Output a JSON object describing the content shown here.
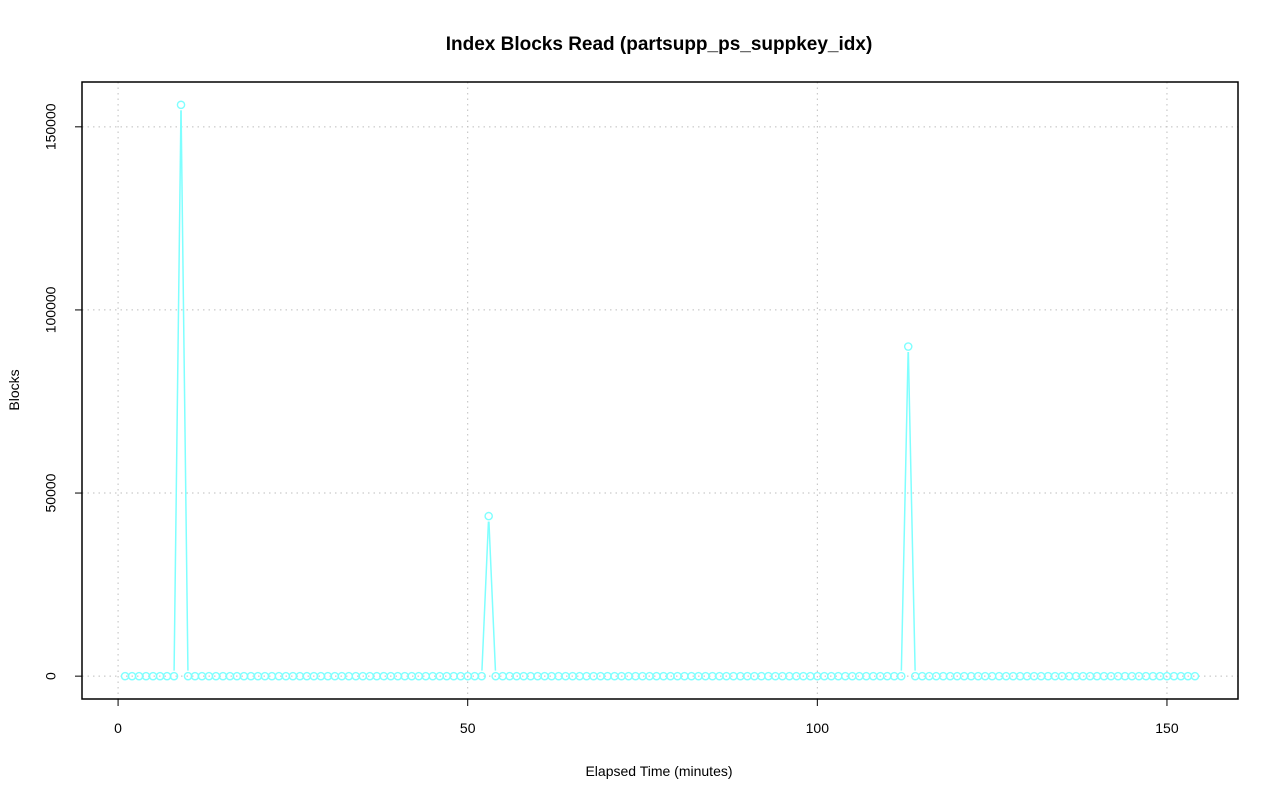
{
  "chart_data": {
    "type": "line",
    "title": "Index Blocks Read (partsupp_ps_suppkey_idx)",
    "xlabel": "Elapsed Time (minutes)",
    "ylabel": "Blocks",
    "xlim": [
      -5.16,
      160.16
    ],
    "ylim": [
      -6240,
      162240
    ],
    "x_ticks": [
      0,
      50,
      100,
      150
    ],
    "y_ticks": [
      0,
      50000,
      100000,
      150000
    ],
    "x_tick_labels": [
      "0",
      "50",
      "100",
      "150"
    ],
    "y_tick_labels": [
      "0",
      "50000",
      "100000",
      "150000"
    ],
    "grid": true,
    "series_color": "#7FFFFF",
    "x_start": 1,
    "x_end": 154,
    "baseline_value": 0,
    "peaks": [
      {
        "x": 9,
        "y": 156000
      },
      {
        "x": 53,
        "y": 43700
      },
      {
        "x": 113,
        "y": 90000
      }
    ]
  }
}
